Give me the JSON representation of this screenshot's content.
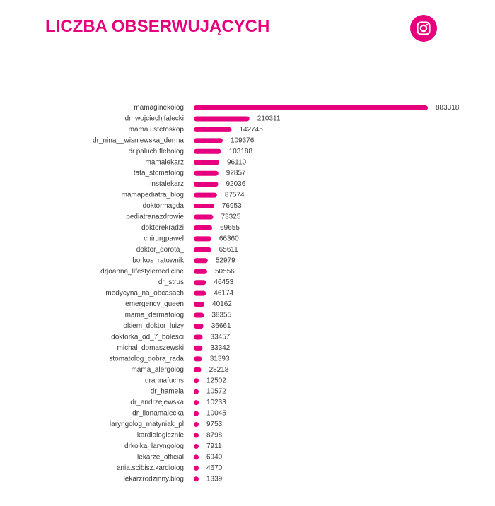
{
  "header": {
    "title": "LICZBA OBSERWUJĄCYCH",
    "icon": "instagram-icon"
  },
  "colors": {
    "accent": "#e6007e",
    "label": "#3a3a3a"
  },
  "chart_data": {
    "type": "bar",
    "orientation": "horizontal",
    "categories": [
      "mamaginekolog",
      "dr_wojciechjfalecki",
      "mama.i.stetoskop",
      "dr_nina__wisniewska_derma",
      "dr.paluch.flebolog",
      "mamalekarz",
      "tata_stomatolog",
      "instalekarz",
      "mamapediatra_blog",
      "doktormagda",
      "pediatranazdrowie",
      "doktorekradzi",
      "chirurgpawel",
      "doktor_dorota_",
      "borkos_ratownik",
      "drjoanna_lifestylemedicine",
      "dr_strus",
      "medycyna_na_obcasach",
      "emergency_queen",
      "mama_dermatolog",
      "okiem_doktor_luizy",
      "doktorka_od_7_bolesci",
      "michal_domaszewski",
      "stomatolog_dobra_rada",
      "mama_alergolog",
      "drannafuchs",
      "dr_hamela",
      "dr_andrzejewska",
      "dr_ilonamalecka",
      "laryngolog_matyniak_pl",
      "kardiologicznie",
      "drkolka_laryngolog",
      "lekarze_official",
      "ania.scibisz.kardiolog",
      "lekarzrodzinny.blog"
    ],
    "values": [
      883318,
      210311,
      142745,
      109376,
      103188,
      96110,
      92857,
      92036,
      87574,
      76953,
      73325,
      69655,
      66360,
      65611,
      52979,
      50556,
      46453,
      46174,
      40162,
      38355,
      36661,
      33457,
      33342,
      31393,
      28218,
      12502,
      10572,
      10233,
      10045,
      9753,
      8798,
      7911,
      6940,
      4670,
      1339
    ],
    "value_labels": [
      "883318",
      "210311",
      "142745",
      "109376",
      "103188",
      "96110",
      "92857",
      "92036",
      "87574",
      "76953",
      "73325",
      "69655",
      "66360",
      "65611",
      "52979",
      "50556",
      "46453",
      "46174",
      "40162",
      "38355",
      "36661",
      "33457",
      "33342",
      "31393",
      "28218",
      "12502",
      "10572",
      "10233",
      "10045",
      "9753",
      "8798",
      "7911",
      "6940",
      "4670",
      "1339"
    ],
    "bar_color": "#e6007e",
    "grid": false,
    "legend": false
  }
}
